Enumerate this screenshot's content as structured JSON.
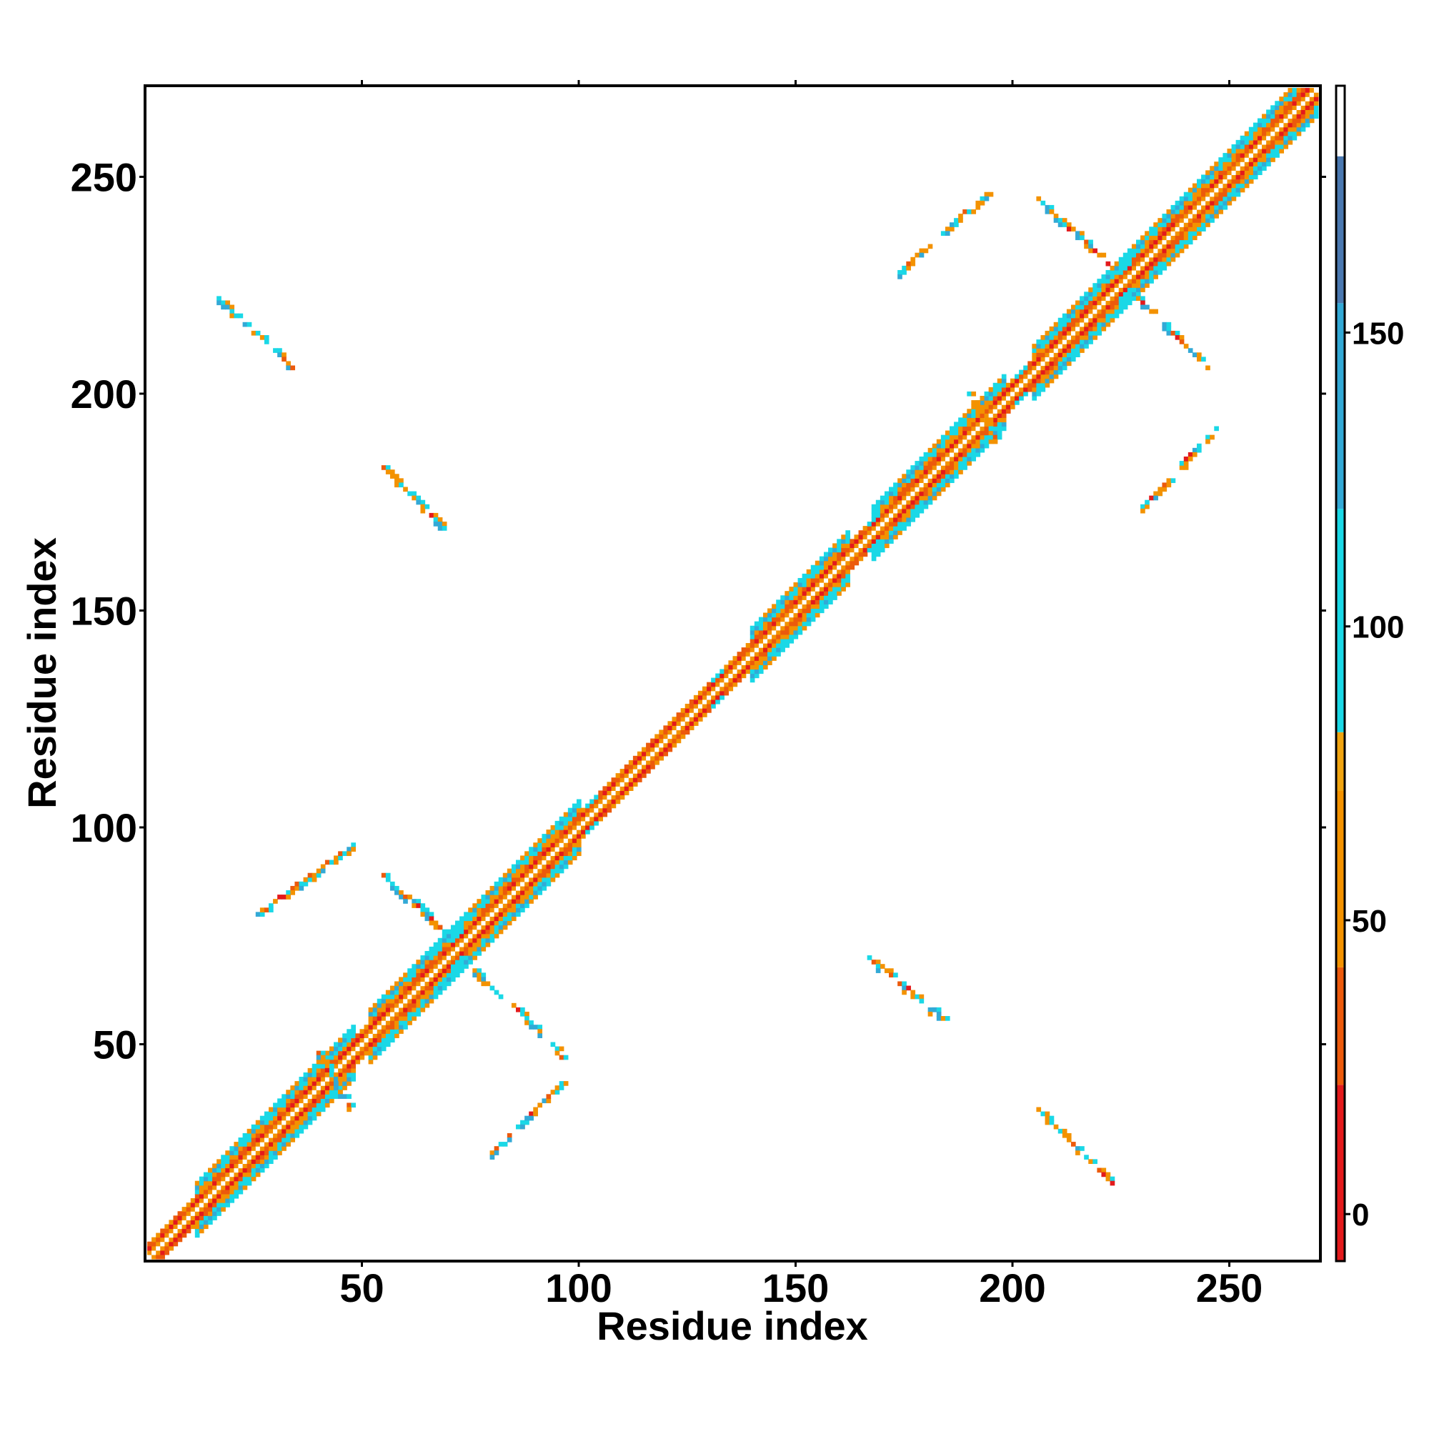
{
  "chart_data": {
    "type": "heatmap",
    "xlabel": "Residue index",
    "ylabel": "Residue index",
    "xlim": [
      0,
      271
    ],
    "ylim": [
      0,
      271
    ],
    "x_ticks": [
      50,
      100,
      150,
      200,
      250
    ],
    "y_ticks": [
      50,
      100,
      150,
      200,
      250
    ],
    "grid": false,
    "colorbar": {
      "ticks": [
        0,
        50,
        100,
        150
      ],
      "range": [
        -8,
        192
      ],
      "bands": [
        {
          "from": -8,
          "to": 22,
          "color": "#e31a1c"
        },
        {
          "from": 22,
          "to": 42,
          "color": "#ec5a0c"
        },
        {
          "from": 42,
          "to": 72,
          "color": "#f39200"
        },
        {
          "from": 72,
          "to": 82,
          "color": "#f0a410"
        },
        {
          "from": 82,
          "to": 120,
          "color": "#1ad8e6"
        },
        {
          "from": 120,
          "to": 155,
          "color": "#33a9d6"
        },
        {
          "from": 155,
          "to": 180,
          "color": "#4a78b0"
        },
        {
          "from": 180,
          "to": 192,
          "color": "#ffffff"
        }
      ]
    },
    "diagonal_band": {
      "from": 1,
      "to": 271,
      "half_width": 6,
      "gaps_at": [
        72,
        103,
        132,
        168,
        202,
        226
      ],
      "wide_segments": [
        [
          12,
          48
        ],
        [
          52,
          100
        ],
        [
          140,
          162
        ],
        [
          168,
          198
        ],
        [
          205,
          271
        ]
      ]
    },
    "contact_segments": [
      {
        "x_start": 17,
        "y_start": 222,
        "x_end": 34,
        "y_end": 206
      },
      {
        "x_start": 55,
        "y_start": 183,
        "x_end": 70,
        "y_end": 168
      },
      {
        "x_start": 26,
        "y_start": 80,
        "x_end": 48,
        "y_end": 96
      },
      {
        "x_start": 54,
        "y_start": 90,
        "x_end": 69,
        "y_end": 76
      },
      {
        "x_start": 76,
        "y_start": 67,
        "x_end": 91,
        "y_end": 53
      },
      {
        "x_start": 94,
        "y_start": 50,
        "x_end": 97,
        "y_end": 46
      },
      {
        "x_start": 80,
        "y_start": 25,
        "x_end": 96,
        "y_end": 41
      },
      {
        "x_start": 40,
        "y_start": 48,
        "x_end": 47,
        "y_end": 36
      },
      {
        "x_start": 174,
        "y_start": 228,
        "x_end": 194,
        "y_end": 246
      },
      {
        "x_start": 205,
        "y_start": 246,
        "x_end": 222,
        "y_end": 230
      },
      {
        "x_start": 229,
        "y_start": 222,
        "x_end": 245,
        "y_end": 206
      },
      {
        "x_start": 230,
        "y_start": 174,
        "x_end": 247,
        "y_end": 192
      },
      {
        "x_start": 167,
        "y_start": 70,
        "x_end": 184,
        "y_end": 56
      },
      {
        "x_start": 206,
        "y_start": 35,
        "x_end": 223,
        "y_end": 18
      },
      {
        "x_start": 190,
        "y_start": 200,
        "x_end": 196,
        "y_end": 190
      }
    ]
  }
}
